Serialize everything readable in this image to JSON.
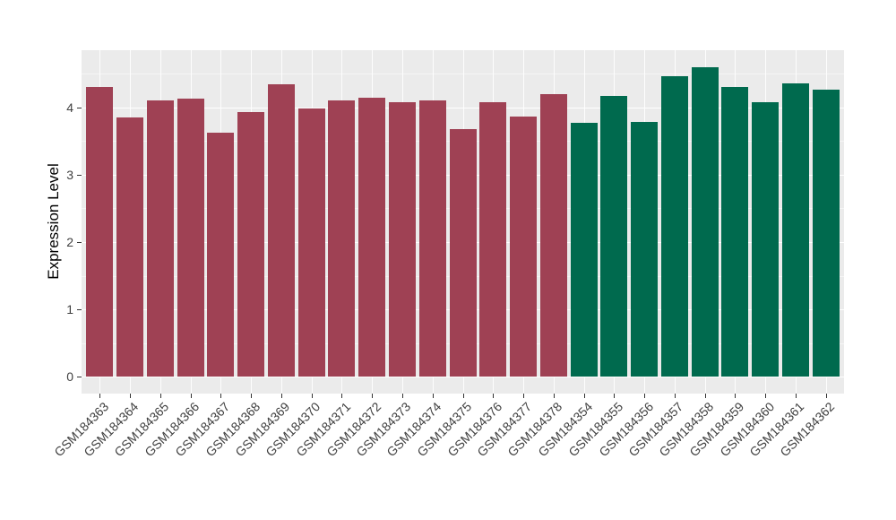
{
  "chart_data": {
    "type": "bar",
    "title": "",
    "ylabel": "Expression Level",
    "xlabel": "",
    "yticks": [
      0,
      1,
      2,
      3,
      4
    ],
    "minor_yticks": [
      0.5,
      1.5,
      2.5,
      3.5,
      4.5
    ],
    "ylim": [
      -0.25,
      4.85
    ],
    "grid": true,
    "legend": "none",
    "panel_bg": "#EBEBEB",
    "grid_color": "#FFFFFF",
    "group_colors": {
      "left_group": "#9F4154",
      "right_group": "#006A4E"
    },
    "bars": [
      {
        "label": "GSM184363",
        "value": 4.31,
        "color": "#9F4154"
      },
      {
        "label": "GSM184364",
        "value": 3.85,
        "color": "#9F4154"
      },
      {
        "label": "GSM184365",
        "value": 4.11,
        "color": "#9F4154"
      },
      {
        "label": "GSM184366",
        "value": 4.13,
        "color": "#9F4154"
      },
      {
        "label": "GSM184367",
        "value": 3.62,
        "color": "#9F4154"
      },
      {
        "label": "GSM184368",
        "value": 3.93,
        "color": "#9F4154"
      },
      {
        "label": "GSM184369",
        "value": 4.35,
        "color": "#9F4154"
      },
      {
        "label": "GSM184370",
        "value": 3.98,
        "color": "#9F4154"
      },
      {
        "label": "GSM184371",
        "value": 4.1,
        "color": "#9F4154"
      },
      {
        "label": "GSM184372",
        "value": 4.15,
        "color": "#9F4154"
      },
      {
        "label": "GSM184373",
        "value": 4.08,
        "color": "#9F4154"
      },
      {
        "label": "GSM184374",
        "value": 4.11,
        "color": "#9F4154"
      },
      {
        "label": "GSM184375",
        "value": 3.68,
        "color": "#9F4154"
      },
      {
        "label": "GSM184376",
        "value": 4.08,
        "color": "#9F4154"
      },
      {
        "label": "GSM184377",
        "value": 3.86,
        "color": "#9F4154"
      },
      {
        "label": "GSM184378",
        "value": 4.2,
        "color": "#9F4154"
      },
      {
        "label": "GSM184354",
        "value": 3.77,
        "color": "#006A4E"
      },
      {
        "label": "GSM184355",
        "value": 4.17,
        "color": "#006A4E"
      },
      {
        "label": "GSM184356",
        "value": 3.78,
        "color": "#006A4E"
      },
      {
        "label": "GSM184357",
        "value": 4.47,
        "color": "#006A4E"
      },
      {
        "label": "GSM184358",
        "value": 4.6,
        "color": "#006A4E"
      },
      {
        "label": "GSM184359",
        "value": 4.31,
        "color": "#006A4E"
      },
      {
        "label": "GSM184360",
        "value": 4.08,
        "color": "#006A4E"
      },
      {
        "label": "GSM184361",
        "value": 4.36,
        "color": "#006A4E"
      },
      {
        "label": "GSM184362",
        "value": 4.26,
        "color": "#006A4E"
      }
    ]
  }
}
